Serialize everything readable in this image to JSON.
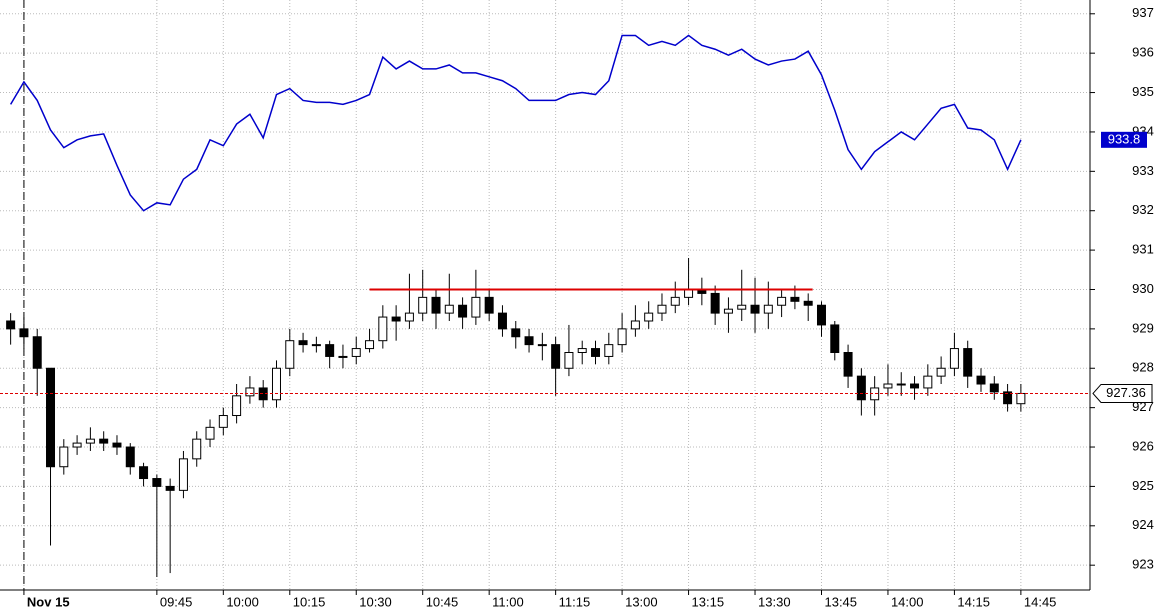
{
  "chart_data": {
    "type": "candlestick",
    "x": [
      -3,
      0,
      3,
      6,
      9,
      12,
      15,
      18,
      21,
      24,
      27,
      30,
      33,
      36,
      39,
      42,
      45,
      48,
      51,
      54,
      57,
      60,
      63,
      66,
      69,
      72,
      75,
      78,
      81,
      84,
      87,
      90,
      93,
      96,
      99,
      102,
      105,
      108,
      111,
      114,
      117,
      120,
      123,
      126,
      129,
      132,
      135,
      138,
      141,
      144,
      147,
      150,
      153,
      156,
      159,
      162,
      165,
      168,
      171,
      174,
      177,
      180,
      183,
      186,
      189,
      192,
      195,
      198,
      201,
      204,
      207,
      210,
      213,
      216,
      219,
      222,
      225
    ],
    "series": [
      {
        "type": "line",
        "color": "#0000cc",
        "values": [
          934.7,
          935.27,
          934.8,
          934.05,
          933.6,
          933.8,
          933.9,
          933.95,
          933.15,
          932.4,
          932.0,
          932.2,
          932.15,
          932.8,
          933.05,
          933.8,
          933.65,
          934.2,
          934.45,
          933.85,
          934.95,
          935.1,
          934.8,
          934.75,
          934.75,
          934.7,
          934.8,
          934.95,
          935.9,
          935.6,
          935.8,
          935.6,
          935.6,
          935.7,
          935.5,
          935.5,
          935.4,
          935.3,
          935.1,
          934.8,
          934.8,
          934.8,
          934.95,
          935.0,
          934.95,
          935.3,
          936.45,
          936.45,
          936.2,
          936.3,
          936.2,
          936.45,
          936.2,
          936.1,
          935.95,
          936.1,
          935.85,
          935.7,
          935.8,
          935.85,
          936.05,
          935.45,
          934.55,
          933.55,
          933.05,
          933.5,
          933.75,
          934.0,
          933.8,
          934.2,
          934.6,
          934.7,
          934.1,
          934.05,
          933.8,
          933.05,
          933.8
        ]
      },
      {
        "type": "candlestick",
        "up_color": "#ffffff",
        "down_color": "#000000",
        "ohlc": [
          [
            929.2,
            929.4,
            928.6,
            929.0
          ],
          [
            929.0,
            929.3,
            928.5,
            928.8
          ],
          [
            928.8,
            929.0,
            927.3,
            928.0
          ],
          [
            928.0,
            928.0,
            923.5,
            925.5
          ],
          [
            925.5,
            926.2,
            925.3,
            926.0
          ],
          [
            926.0,
            926.3,
            925.8,
            926.1
          ],
          [
            926.1,
            926.5,
            925.9,
            926.2
          ],
          [
            926.2,
            926.4,
            925.9,
            926.1
          ],
          [
            926.1,
            926.3,
            925.8,
            926.0
          ],
          [
            926.0,
            926.1,
            925.3,
            925.5
          ],
          [
            925.5,
            925.6,
            925.0,
            925.2
          ],
          [
            925.2,
            925.3,
            922.7,
            925.0
          ],
          [
            925.0,
            925.2,
            922.8,
            924.9
          ],
          [
            924.9,
            925.9,
            924.7,
            925.7
          ],
          [
            925.7,
            926.4,
            925.5,
            926.2
          ],
          [
            926.2,
            926.7,
            926.0,
            926.5
          ],
          [
            926.5,
            927.0,
            926.3,
            926.8
          ],
          [
            926.8,
            927.6,
            926.6,
            927.3
          ],
          [
            927.3,
            927.8,
            927.1,
            927.5
          ],
          [
            927.5,
            927.7,
            927.0,
            927.2
          ],
          [
            927.2,
            928.2,
            927.0,
            928.0
          ],
          [
            928.0,
            929.0,
            927.8,
            928.7
          ],
          [
            928.7,
            928.9,
            928.4,
            928.6
          ],
          [
            928.6,
            928.8,
            928.4,
            928.6
          ],
          [
            928.6,
            928.7,
            928.0,
            928.3
          ],
          [
            928.3,
            928.6,
            928.0,
            928.3
          ],
          [
            928.3,
            928.8,
            928.1,
            928.5
          ],
          [
            928.5,
            929.0,
            928.4,
            928.7
          ],
          [
            928.7,
            929.6,
            928.5,
            929.3
          ],
          [
            929.3,
            929.6,
            928.7,
            929.2
          ],
          [
            929.2,
            930.4,
            929.0,
            929.4
          ],
          [
            929.4,
            930.5,
            929.2,
            929.8
          ],
          [
            929.8,
            930.0,
            929.0,
            929.4
          ],
          [
            929.4,
            930.4,
            929.2,
            929.6
          ],
          [
            929.6,
            929.8,
            929.0,
            929.3
          ],
          [
            929.3,
            930.5,
            929.1,
            929.8
          ],
          [
            929.8,
            930.0,
            929.2,
            929.4
          ],
          [
            929.4,
            929.6,
            928.8,
            929.0
          ],
          [
            929.0,
            929.2,
            928.5,
            928.8
          ],
          [
            928.8,
            929.0,
            928.4,
            928.6
          ],
          [
            928.6,
            928.9,
            928.2,
            928.6
          ],
          [
            928.6,
            928.8,
            927.3,
            928.0
          ],
          [
            928.0,
            929.1,
            927.8,
            928.4
          ],
          [
            928.4,
            928.7,
            928.1,
            928.5
          ],
          [
            928.5,
            928.7,
            928.1,
            928.3
          ],
          [
            928.3,
            928.9,
            928.1,
            928.6
          ],
          [
            928.6,
            929.4,
            928.4,
            929.0
          ],
          [
            929.0,
            929.6,
            928.8,
            929.2
          ],
          [
            929.2,
            929.7,
            929.0,
            929.4
          ],
          [
            929.4,
            929.9,
            929.2,
            929.6
          ],
          [
            929.6,
            930.2,
            929.4,
            929.8
          ],
          [
            929.8,
            930.8,
            929.6,
            930.0
          ],
          [
            930.0,
            930.3,
            929.6,
            929.9
          ],
          [
            929.9,
            930.1,
            929.1,
            929.4
          ],
          [
            929.4,
            929.8,
            928.9,
            929.5
          ],
          [
            929.5,
            930.5,
            929.2,
            929.6
          ],
          [
            929.6,
            930.3,
            928.9,
            929.4
          ],
          [
            929.4,
            930.2,
            929.0,
            929.6
          ],
          [
            929.6,
            930.0,
            929.3,
            929.8
          ],
          [
            929.8,
            930.1,
            929.5,
            929.7
          ],
          [
            929.7,
            929.9,
            929.2,
            929.6
          ],
          [
            929.6,
            929.7,
            928.8,
            929.1
          ],
          [
            929.1,
            929.2,
            928.2,
            928.4
          ],
          [
            928.4,
            928.6,
            927.5,
            927.8
          ],
          [
            927.8,
            928.0,
            926.8,
            927.2
          ],
          [
            927.2,
            927.8,
            926.8,
            927.5
          ],
          [
            927.5,
            928.1,
            927.3,
            927.6
          ],
          [
            927.6,
            927.9,
            927.3,
            927.6
          ],
          [
            927.6,
            927.8,
            927.2,
            927.5
          ],
          [
            927.5,
            928.1,
            927.3,
            927.8
          ],
          [
            927.8,
            928.3,
            927.6,
            928.0
          ],
          [
            928.0,
            928.9,
            927.8,
            928.5
          ],
          [
            928.5,
            928.7,
            927.5,
            927.8
          ],
          [
            927.8,
            928.0,
            927.4,
            927.6
          ],
          [
            927.6,
            927.8,
            927.2,
            927.4
          ],
          [
            927.4,
            927.6,
            926.9,
            927.1
          ],
          [
            927.1,
            927.6,
            926.9,
            927.36
          ]
        ]
      }
    ],
    "hline": {
      "value": 930,
      "x": [
        78,
        178
      ],
      "color": "#dd0000"
    },
    "last_price_line_color": "#dd0000",
    "session_start": 0,
    "xlim": [
      -5.4,
      240.6
    ],
    "ylim": [
      922.37,
      937.35
    ],
    "xticks": [
      {
        "value": 0,
        "label": "Nov 15"
      },
      {
        "value": 30,
        "label": "09:45"
      },
      {
        "value": 45,
        "label": "10:00"
      },
      {
        "value": 60,
        "label": "10:15"
      },
      {
        "value": 75,
        "label": "10:30"
      },
      {
        "value": 90,
        "label": "10:45"
      },
      {
        "value": 105,
        "label": "11:00"
      },
      {
        "value": 120,
        "label": "11:15"
      },
      {
        "value": 135,
        "label": "13:00"
      },
      {
        "value": 150,
        "label": "13:15"
      },
      {
        "value": 165,
        "label": "13:30"
      },
      {
        "value": 180,
        "label": "13:45"
      },
      {
        "value": 195,
        "label": "14:00"
      },
      {
        "value": 210,
        "label": "14:15"
      },
      {
        "value": 225,
        "label": "14:45"
      }
    ],
    "yticks": [
      923,
      924,
      925,
      926,
      927,
      928,
      929,
      930,
      931,
      932,
      933,
      934,
      935,
      936,
      937
    ],
    "grid": true
  }
}
